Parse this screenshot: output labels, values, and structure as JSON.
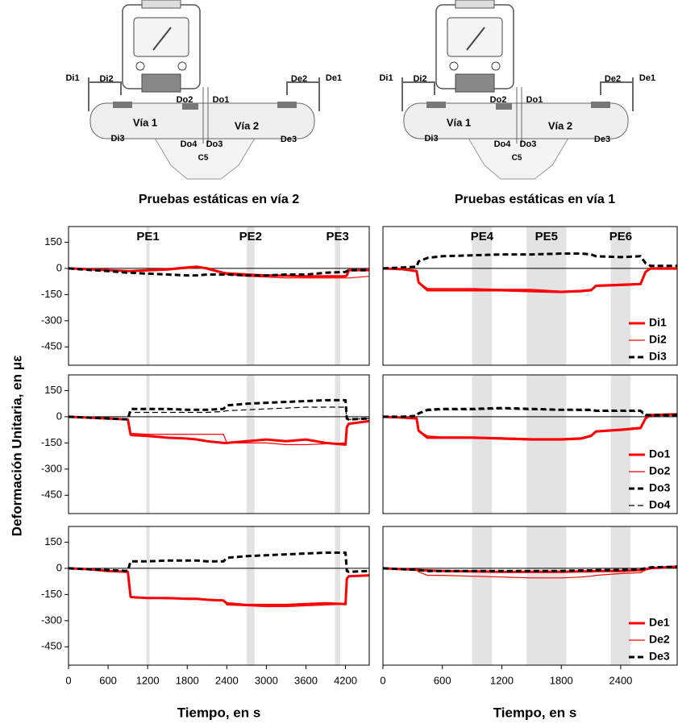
{
  "figure": {
    "ylabel": "Deformación Unitaria, en με"
  },
  "diagrams": [
    {
      "labels": [
        "Di1",
        "Di2",
        "Do2",
        "Do1",
        "De2",
        "De1",
        "Vía 1",
        "Vía 2",
        "Di3",
        "Do4",
        "Do3",
        "De3",
        "C5"
      ]
    },
    {
      "labels": [
        "Di1",
        "Di2",
        "Do2",
        "Do1",
        "De2",
        "De1",
        "Vía 1",
        "Vía 2",
        "Di3",
        "Do4",
        "Do3",
        "De3",
        "C5"
      ]
    }
  ],
  "chart_data": [
    {
      "type": "line",
      "title": "Pruebas estáticas en vía 2",
      "xlim": [
        0,
        4560
      ],
      "ylim": [
        -555,
        240
      ],
      "yticks": [
        150,
        0,
        -150,
        -300,
        -450
      ],
      "hline": 0,
      "bands": [
        {
          "label": "PE1",
          "start": 1180,
          "end": 1230
        },
        {
          "label": "PE2",
          "start": 2700,
          "end": 2820
        },
        {
          "label": "PE3",
          "start": 4040,
          "end": 4120
        }
      ],
      "x": [
        0,
        300,
        600,
        900,
        940,
        950,
        1200,
        1500,
        1800,
        1950,
        2100,
        2350,
        2400,
        2700,
        3000,
        3300,
        3600,
        3900,
        4200,
        4220,
        4250,
        4560
      ],
      "series": [
        {
          "color": "#ff0000",
          "linewidth": 3,
          "style": "solid",
          "values": [
            0,
            -5,
            -10,
            -15,
            -15,
            -15,
            -10,
            -5,
            5,
            10,
            0,
            -25,
            -28,
            -35,
            -40,
            -42,
            -45,
            -45,
            -45,
            -40,
            -10,
            -10
          ]
        },
        {
          "color": "#ff0000",
          "linewidth": 1.2,
          "style": "solid",
          "values": [
            0,
            -5,
            -12,
            -18,
            -18,
            -18,
            -15,
            -10,
            0,
            5,
            -5,
            -30,
            -35,
            -45,
            -50,
            -55,
            -55,
            -55,
            -55,
            -55,
            -55,
            -45
          ]
        },
        {
          "color": "#000000",
          "linewidth": 3,
          "style": "dashed",
          "values": [
            0,
            -8,
            -15,
            -25,
            -25,
            -25,
            -30,
            -35,
            -40,
            -40,
            -35,
            -35,
            -35,
            -40,
            -40,
            -35,
            -35,
            -25,
            -20,
            -15,
            -10,
            -10
          ]
        }
      ]
    },
    {
      "type": "line",
      "title": "Pruebas estáticas en vía 1",
      "xlim": [
        0,
        2970
      ],
      "ylim": [
        -555,
        240
      ],
      "hline": 0,
      "legend": "lower right",
      "bands": [
        {
          "label": "PE4",
          "start": 900,
          "end": 1100
        },
        {
          "label": "PE5",
          "start": 1450,
          "end": 1850
        },
        {
          "label": "PE6",
          "start": 2300,
          "end": 2500
        }
      ],
      "x": [
        0,
        200,
        340,
        360,
        450,
        600,
        900,
        1200,
        1500,
        1800,
        2000,
        2100,
        2150,
        2400,
        2600,
        2650,
        2700,
        2970
      ],
      "series": [
        {
          "name": "Di1",
          "color": "#ff0000",
          "linewidth": 3,
          "style": "solid",
          "values": [
            0,
            -5,
            -15,
            -80,
            -125,
            -125,
            -125,
            -125,
            -130,
            -135,
            -130,
            -125,
            -100,
            -95,
            -90,
            -20,
            0,
            0
          ]
        },
        {
          "name": "Di2",
          "color": "#ff0000",
          "linewidth": 1.2,
          "style": "solid",
          "values": [
            0,
            -5,
            -15,
            -80,
            -115,
            -115,
            -115,
            -120,
            -120,
            -130,
            -125,
            -120,
            -95,
            -90,
            -85,
            -20,
            -5,
            -5
          ]
        },
        {
          "name": "Di3",
          "color": "#000000",
          "linewidth": 3,
          "style": "dashed",
          "values": [
            0,
            5,
            10,
            40,
            60,
            70,
            75,
            80,
            80,
            85,
            85,
            80,
            70,
            65,
            70,
            30,
            15,
            15
          ]
        }
      ]
    },
    {
      "type": "line",
      "xlim": [
        0,
        4560
      ],
      "ylim": [
        -555,
        240
      ],
      "yticks": [
        150,
        0,
        -150,
        -300,
        -450
      ],
      "hline": 0,
      "bands": [
        {
          "start": 1180,
          "end": 1230
        },
        {
          "start": 2700,
          "end": 2820
        },
        {
          "start": 4040,
          "end": 4120
        }
      ],
      "x": [
        0,
        300,
        600,
        900,
        940,
        950,
        1200,
        1500,
        1800,
        1950,
        2100,
        2350,
        2400,
        2700,
        3000,
        3300,
        3600,
        3900,
        4200,
        4220,
        4250,
        4560
      ],
      "series": [
        {
          "color": "#ff0000",
          "linewidth": 3,
          "style": "solid",
          "values": [
            0,
            -5,
            -10,
            -15,
            -100,
            -105,
            -110,
            -120,
            -125,
            -130,
            -140,
            -150,
            -150,
            -140,
            -130,
            -140,
            -130,
            -150,
            -160,
            -60,
            -40,
            -25
          ]
        },
        {
          "color": "#ff0000",
          "linewidth": 1.2,
          "style": "solid",
          "values": [
            0,
            -5,
            -10,
            -15,
            -95,
            -95,
            -100,
            -100,
            -100,
            -100,
            -100,
            -100,
            -150,
            -150,
            -150,
            -160,
            -160,
            -155,
            -150,
            -60,
            -40,
            -20
          ]
        },
        {
          "color": "#000000",
          "linewidth": 3,
          "style": "dashed",
          "values": [
            0,
            -5,
            -10,
            -15,
            40,
            45,
            45,
            45,
            40,
            40,
            40,
            45,
            65,
            75,
            80,
            85,
            90,
            95,
            95,
            -10,
            -15,
            -10
          ]
        },
        {
          "color": "#000000",
          "linewidth": 1.2,
          "style": "dashed",
          "values": [
            0,
            -5,
            -10,
            -15,
            25,
            25,
            25,
            25,
            25,
            25,
            25,
            30,
            35,
            40,
            45,
            50,
            55,
            55,
            55,
            -10,
            -15,
            -10
          ]
        }
      ]
    },
    {
      "type": "line",
      "xlim": [
        0,
        2970
      ],
      "ylim": [
        -555,
        240
      ],
      "hline": 0,
      "legend": "lower right",
      "bands": [
        {
          "start": 900,
          "end": 1100
        },
        {
          "start": 1450,
          "end": 1850
        },
        {
          "start": 2300,
          "end": 2500
        }
      ],
      "x": [
        0,
        200,
        340,
        360,
        450,
        600,
        900,
        1200,
        1500,
        1800,
        2000,
        2100,
        2150,
        2400,
        2600,
        2650,
        2700,
        2970
      ],
      "series": [
        {
          "name": "Do1",
          "color": "#ff0000",
          "linewidth": 3,
          "style": "solid",
          "values": [
            0,
            -5,
            -10,
            -80,
            -120,
            -120,
            -120,
            -125,
            -130,
            -130,
            -125,
            -110,
            -85,
            -75,
            -65,
            -10,
            10,
            15
          ]
        },
        {
          "name": "Do2",
          "color": "#ff0000",
          "linewidth": 1.2,
          "style": "solid",
          "values": [
            0,
            -5,
            -10,
            -80,
            -110,
            -115,
            -115,
            -120,
            -125,
            -125,
            -120,
            -105,
            -80,
            -70,
            -60,
            -10,
            5,
            10
          ]
        },
        {
          "name": "Do3",
          "color": "#000000",
          "linewidth": 3,
          "style": "dashed",
          "values": [
            0,
            0,
            5,
            20,
            40,
            45,
            45,
            50,
            45,
            40,
            40,
            40,
            35,
            35,
            35,
            10,
            10,
            10
          ]
        },
        {
          "name": "Do4",
          "color": "#000000",
          "linewidth": 1.2,
          "style": "dashed",
          "values": [
            0,
            0,
            5,
            15,
            35,
            40,
            40,
            45,
            40,
            40,
            35,
            35,
            30,
            30,
            30,
            5,
            5,
            5
          ]
        }
      ]
    },
    {
      "type": "line",
      "xlabel": "Tiempo, en s",
      "xlim": [
        0,
        4560
      ],
      "ylim": [
        -555,
        240
      ],
      "yticks": [
        150,
        0,
        -150,
        -300,
        -450
      ],
      "xticks": [
        0,
        600,
        1200,
        1800,
        2400,
        3000,
        3600,
        4200
      ],
      "hline": 0,
      "bands": [
        {
          "start": 1180,
          "end": 1230
        },
        {
          "start": 2700,
          "end": 2820
        },
        {
          "start": 4040,
          "end": 4120
        }
      ],
      "x": [
        0,
        300,
        600,
        900,
        940,
        950,
        1200,
        1500,
        1800,
        1950,
        2100,
        2350,
        2400,
        2700,
        3000,
        3300,
        3600,
        3900,
        4200,
        4220,
        4250,
        4560
      ],
      "series": [
        {
          "color": "#ff0000",
          "linewidth": 3,
          "style": "solid",
          "values": [
            0,
            -5,
            -15,
            -20,
            -160,
            -165,
            -170,
            -170,
            -175,
            -175,
            -180,
            -185,
            -200,
            -210,
            -210,
            -210,
            -205,
            -200,
            -205,
            -60,
            -45,
            -40
          ]
        },
        {
          "color": "#ff0000",
          "linewidth": 1.2,
          "style": "solid",
          "values": [
            0,
            -5,
            -15,
            -20,
            -160,
            -165,
            -170,
            -175,
            -170,
            -175,
            -180,
            -180,
            -210,
            -215,
            -220,
            -220,
            -215,
            -210,
            -205,
            -60,
            -45,
            -40
          ]
        },
        {
          "color": "#000000",
          "linewidth": 3,
          "style": "dashed",
          "values": [
            0,
            -5,
            -10,
            -15,
            40,
            40,
            40,
            45,
            45,
            45,
            40,
            40,
            60,
            70,
            75,
            80,
            85,
            90,
            90,
            -15,
            -20,
            -15
          ]
        }
      ]
    },
    {
      "type": "line",
      "xlabel": "Tiempo, en s",
      "xlim": [
        0,
        2970
      ],
      "ylim": [
        -555,
        240
      ],
      "xticks": [
        0,
        600,
        1200,
        1800,
        2400
      ],
      "hline": 0,
      "legend": "lower right",
      "bands": [
        {
          "start": 900,
          "end": 1100
        },
        {
          "start": 1450,
          "end": 1850
        },
        {
          "start": 2300,
          "end": 2500
        }
      ],
      "x": [
        0,
        200,
        340,
        360,
        450,
        600,
        900,
        1200,
        1500,
        1800,
        2000,
        2100,
        2150,
        2400,
        2600,
        2650,
        2700,
        2970
      ],
      "series": [
        {
          "name": "De1",
          "color": "#ff0000",
          "linewidth": 3,
          "style": "solid",
          "values": [
            0,
            -5,
            -8,
            -10,
            -12,
            -15,
            -18,
            -20,
            -20,
            -20,
            -18,
            -18,
            -15,
            -15,
            -10,
            -5,
            0,
            10
          ]
        },
        {
          "name": "De2",
          "color": "#ff0000",
          "linewidth": 1.2,
          "style": "solid",
          "values": [
            0,
            -5,
            -10,
            -20,
            -40,
            -40,
            -45,
            -50,
            -55,
            -55,
            -50,
            -45,
            -40,
            -30,
            -25,
            -10,
            0,
            5
          ]
        },
        {
          "name": "De3",
          "color": "#000000",
          "linewidth": 3,
          "style": "dashed",
          "values": [
            0,
            -5,
            -8,
            -10,
            -15,
            -15,
            -15,
            -15,
            -15,
            -15,
            -12,
            -12,
            -10,
            -10,
            -5,
            0,
            5,
            10
          ]
        }
      ]
    }
  ]
}
